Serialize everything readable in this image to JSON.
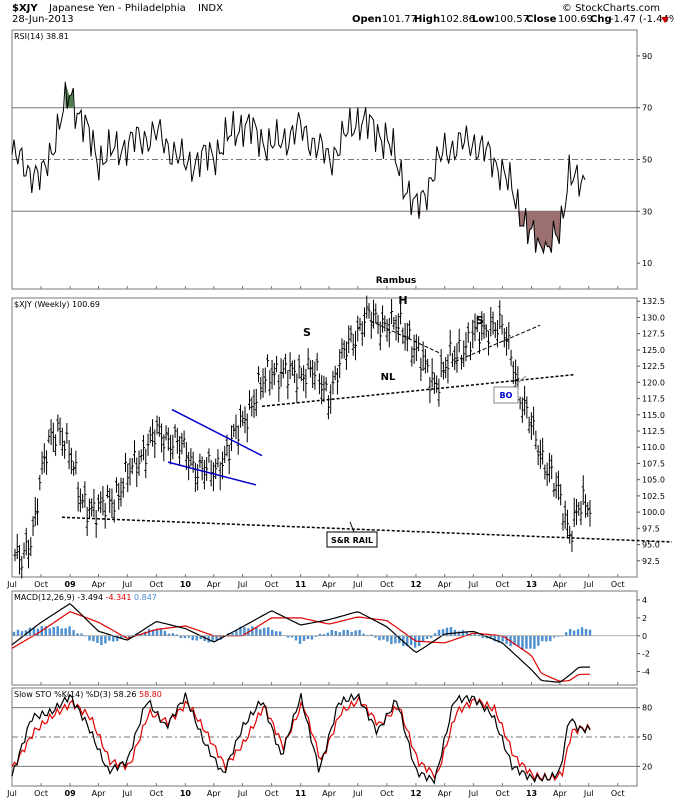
{
  "header": {
    "symbol": "$XJY",
    "name": "Japanese Yen - Philadelphia",
    "exchange": "INDX",
    "date": "28-Jun-2013",
    "source": "© StockCharts.com",
    "open_label": "Open",
    "open": "101.77",
    "high_label": "High",
    "high": "102.86",
    "low_label": "Low",
    "low": "100.57",
    "close_label": "Close",
    "close": "100.69",
    "chg_label": "Chg",
    "chg": "-1.47 (-1.44%)",
    "down_arrow_color": "#cc0000"
  },
  "annotations": {
    "author": "Rambus",
    "head": "H",
    "shoulder_left": "S",
    "shoulder_right": "S",
    "neckline": "NL",
    "breakout": "BO",
    "rail": "S&R RAIL"
  },
  "colors": {
    "price": "#000000",
    "wedge": "#0000cc",
    "macd_hist": "#4a8fd0",
    "signal": "#e00000",
    "rsi_fill_high": "#4f7f4f",
    "rsi_fill_low": "#9c7070",
    "grid": "#555555"
  },
  "chart_data": [
    {
      "type": "line",
      "panel": "rsi",
      "title": "RSI(14) 38.81",
      "ylim": [
        0,
        100
      ],
      "yticks": [
        10,
        30,
        50,
        70,
        90
      ],
      "reference_lines": [
        30,
        50,
        70
      ],
      "x": [
        "2008-07",
        "2008-10",
        "2009-01",
        "2009-04",
        "2009-07",
        "2009-10",
        "2010-01",
        "2010-04",
        "2010-07",
        "2010-10",
        "2011-01",
        "2011-04",
        "2011-07",
        "2011-10",
        "2012-01",
        "2012-04",
        "2012-07",
        "2012-10",
        "2013-01",
        "2013-02",
        "2013-04",
        "2013-05",
        "2013-06"
      ],
      "series": [
        {
          "values": [
            52,
            42,
            76,
            50,
            56,
            60,
            48,
            52,
            64,
            55,
            62,
            50,
            66,
            58,
            30,
            54,
            57,
            46,
            20,
            15,
            20,
            48,
            39
          ]
        }
      ]
    },
    {
      "type": "bar",
      "panel": "price",
      "title": "$XJY (Weekly) 100.69",
      "ylim": [
        90,
        133
      ],
      "yticks": [
        92.5,
        95.0,
        97.5,
        100.0,
        102.5,
        105.0,
        107.5,
        110.0,
        112.5,
        115.0,
        117.5,
        120.0,
        122.5,
        125.0,
        127.5,
        130.0,
        132.5
      ],
      "x": [
        "2008-07",
        "2008-08",
        "2008-09",
        "2008-10",
        "2008-11",
        "2008-12",
        "2009-01",
        "2009-02",
        "2009-04",
        "2009-06",
        "2009-08",
        "2009-10",
        "2009-12",
        "2010-02",
        "2010-04",
        "2010-06",
        "2010-08",
        "2010-10",
        "2010-12",
        "2011-02",
        "2011-04",
        "2011-06",
        "2011-08",
        "2011-10",
        "2011-12",
        "2012-02",
        "2012-03",
        "2012-05",
        "2012-07",
        "2012-09",
        "2012-10",
        "2012-11",
        "2012-12",
        "2013-01",
        "2013-02",
        "2013-03",
        "2013-04",
        "2013-05",
        "2013-06"
      ],
      "values": [
        94,
        92,
        96,
        106,
        111,
        113,
        109,
        102,
        100,
        103,
        108,
        112,
        111,
        107,
        106,
        111,
        117,
        122,
        121,
        122,
        118,
        126,
        130,
        129,
        128,
        122,
        120,
        124,
        127,
        129,
        128,
        124,
        117,
        113,
        109,
        106,
        102,
        97,
        100.69
      ],
      "ohlc_last": {
        "open": 101.77,
        "high": 102.86,
        "low": 100.57,
        "close": 100.69
      }
    },
    {
      "type": "line",
      "panel": "macd",
      "title": "MACD(12,26,9)",
      "legend": [
        {
          "name": "-3.494"
        },
        {
          "name": "-4.341"
        },
        {
          "name": "0.847"
        }
      ],
      "ylim": [
        -5.5,
        5
      ],
      "yticks": [
        -4,
        -2,
        0,
        2,
        4
      ],
      "x": [
        "2008-07",
        "2008-10",
        "2009-01",
        "2009-04",
        "2009-07",
        "2009-10",
        "2010-01",
        "2010-04",
        "2010-07",
        "2010-10",
        "2011-01",
        "2011-04",
        "2011-07",
        "2011-10",
        "2012-01",
        "2012-04",
        "2012-07",
        "2012-10",
        "2013-01",
        "2013-02",
        "2013-04",
        "2013-05",
        "2013-06"
      ],
      "series": [
        {
          "values": [
            -1.0,
            1.5,
            3.6,
            0.5,
            -0.5,
            1.6,
            0.8,
            -0.7,
            1.0,
            2.8,
            1.2,
            1.8,
            2.7,
            1.0,
            -1.9,
            0.2,
            0.5,
            -0.8,
            -3.8,
            -5.0,
            -5.2,
            -4.4,
            -3.5
          ]
        },
        {
          "values": [
            -1.4,
            0.5,
            2.7,
            1.5,
            -0.3,
            0.7,
            1.1,
            0.0,
            0.0,
            2.0,
            2.0,
            1.3,
            2.1,
            1.7,
            -0.6,
            -0.8,
            0.3,
            0.0,
            -2.2,
            -4.2,
            -5.1,
            -5.0,
            -4.3
          ]
        },
        {
          "values": [
            0.4,
            1.0,
            0.9,
            -1.0,
            -0.2,
            0.9,
            -0.3,
            -0.7,
            1.0,
            0.8,
            -0.8,
            0.5,
            0.6,
            -0.7,
            -1.3,
            1.0,
            0.2,
            -0.8,
            -1.6,
            -0.8,
            -0.1,
            0.6,
            0.8
          ]
        }
      ]
    },
    {
      "type": "line",
      "panel": "stochastic",
      "title": "Slow STO %K(14) %D(3)",
      "legend": [
        {
          "name": "58.26"
        },
        {
          "name": "58.80"
        }
      ],
      "ylim": [
        0,
        100
      ],
      "yticks": [
        20,
        50,
        80
      ],
      "reference_lines": [
        20,
        50,
        80
      ],
      "x": [
        "2008-07",
        "2008-09",
        "2008-11",
        "2009-01",
        "2009-03",
        "2009-05",
        "2009-07",
        "2009-09",
        "2009-11",
        "2010-01",
        "2010-03",
        "2010-05",
        "2010-07",
        "2010-09",
        "2010-11",
        "2011-01",
        "2011-03",
        "2011-05",
        "2011-07",
        "2011-09",
        "2011-11",
        "2012-01",
        "2012-03",
        "2012-05",
        "2012-07",
        "2012-09",
        "2012-11",
        "2013-01",
        "2013-03",
        "2013-04",
        "2013-05",
        "2013-06"
      ],
      "series": [
        {
          "values": [
            10,
            70,
            75,
            92,
            60,
            15,
            25,
            88,
            60,
            92,
            45,
            12,
            60,
            88,
            30,
            92,
            15,
            85,
            92,
            55,
            88,
            15,
            5,
            88,
            90,
            72,
            20,
            8,
            8,
            15,
            70,
            58
          ]
        },
        {
          "values": [
            20,
            55,
            72,
            85,
            70,
            25,
            20,
            75,
            65,
            85,
            55,
            20,
            45,
            82,
            40,
            85,
            25,
            75,
            88,
            62,
            82,
            25,
            10,
            75,
            88,
            78,
            30,
            10,
            8,
            12,
            55,
            59
          ]
        }
      ]
    }
  ]
}
